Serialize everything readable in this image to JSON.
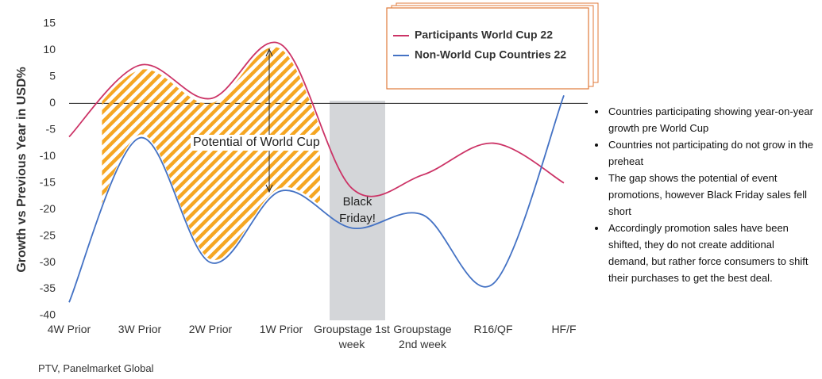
{
  "chart_data": {
    "type": "line",
    "y_label": "Growth vs Previous Year in USD%",
    "categories": [
      "4W Prior",
      "3W Prior",
      "2W Prior",
      "1W Prior",
      "Groupstage 1st week",
      "Groupstage 2nd week",
      "R16/QF",
      "HF/F"
    ],
    "series": [
      {
        "name": "Participants World Cup 22",
        "color": "#cc3366",
        "values": [
          -6.3,
          7.2,
          0.9,
          11.1,
          -16,
          -13.5,
          -7.5,
          -15
        ]
      },
      {
        "name": "Non-World Cup Countries 22",
        "color": "#4472c4",
        "values": [
          -37.5,
          -6.5,
          -30,
          -16.5,
          -23.5,
          -21,
          -34,
          1.5
        ]
      }
    ],
    "ylim": [
      -40,
      15
    ],
    "yticks": [
      15,
      10,
      5,
      0,
      -5,
      -10,
      -15,
      -20,
      -25,
      -30,
      -35,
      -40
    ],
    "annotations": [
      "Potential of World Cup",
      "Black Friday!"
    ],
    "notes": [
      "Countries participating showing year-on-year growth pre World Cup",
      "Countries not participating do not grow in the preheat",
      "The gap shows the potential of event promotions, however Black Friday sales fell short",
      "Accordingly promotion sales have been shifted, they do not create additional demand, but rather force consumers to shift their purchases to get the best deal."
    ],
    "source": "PTV, Panelmarket Global"
  }
}
